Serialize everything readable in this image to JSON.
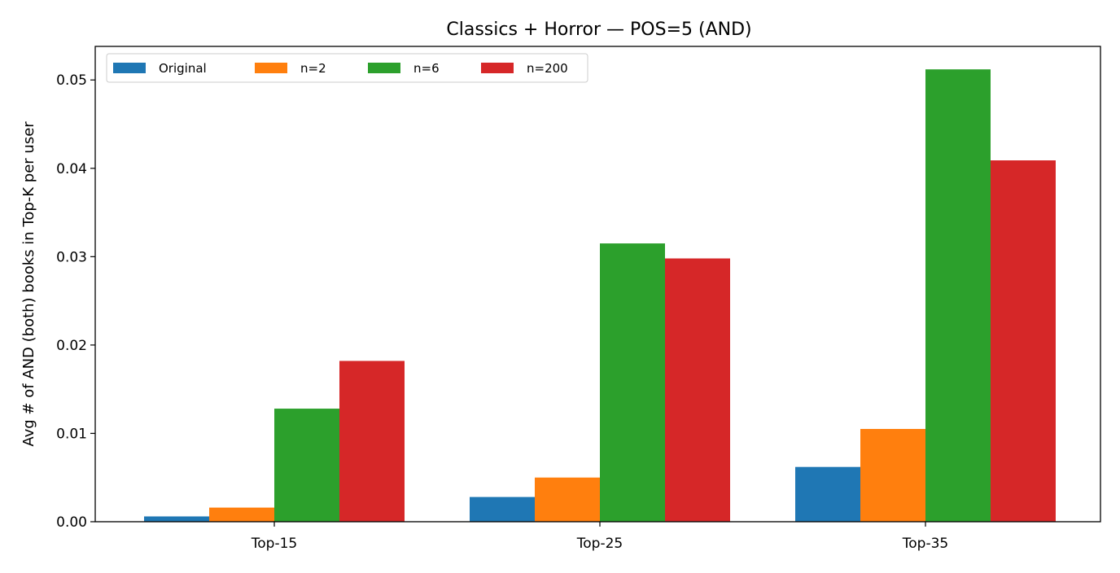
{
  "chart_data": {
    "type": "bar",
    "title": "Classics + Horror — POS=5 (AND)",
    "xlabel": "",
    "ylabel": "Avg # of AND (both) books in Top-K per user",
    "categories": [
      "Top-15",
      "Top-25",
      "Top-35"
    ],
    "series": [
      {
        "name": "Original",
        "color": "#1f77b4",
        "values": [
          0.0006,
          0.0028,
          0.0062
        ]
      },
      {
        "name": "n=2",
        "color": "#ff7f0e",
        "values": [
          0.0016,
          0.005,
          0.0105
        ]
      },
      {
        "name": "n=6",
        "color": "#2ca02c",
        "values": [
          0.0128,
          0.0315,
          0.0512
        ]
      },
      {
        "name": "n=200",
        "color": "#d62728",
        "values": [
          0.0182,
          0.0298,
          0.0409
        ]
      }
    ],
    "ylim": [
      0,
      0.0538
    ],
    "yticks": [
      0.0,
      0.01,
      0.02,
      0.03,
      0.04,
      0.05
    ],
    "ytick_labels": [
      "0.00",
      "0.01",
      "0.02",
      "0.03",
      "0.04",
      "0.05"
    ],
    "grid": false,
    "legend": "upper-left"
  }
}
